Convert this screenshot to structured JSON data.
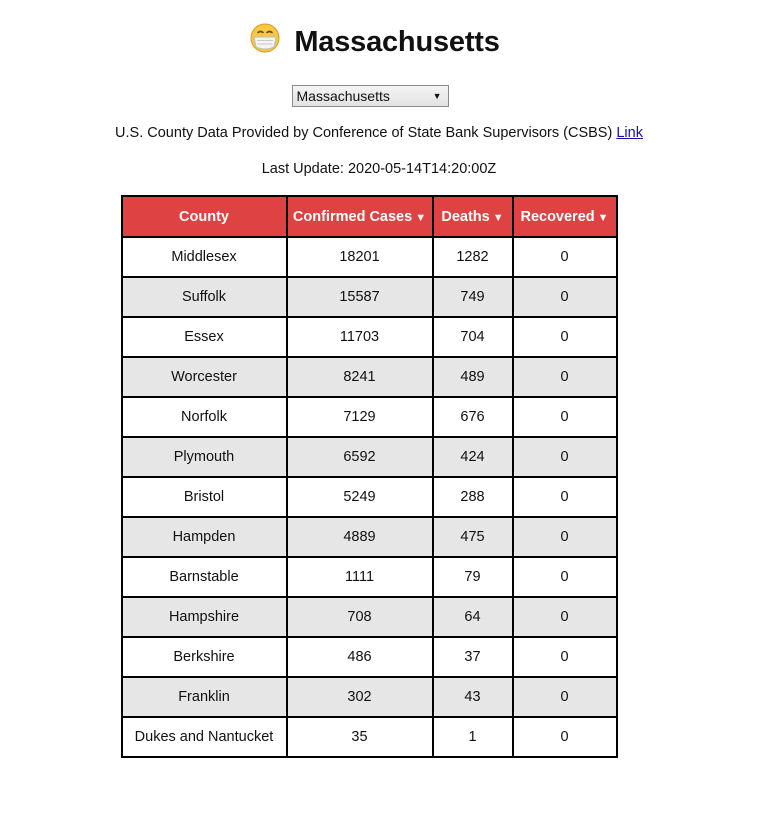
{
  "header": {
    "icon": "face-with-medical-mask-icon",
    "title": "Massachusetts"
  },
  "state_select": {
    "selected": "Massachusetts"
  },
  "source": {
    "text": "U.S. County Data Provided by Conference of State Bank Supervisors (CSBS)",
    "link_label": "Link"
  },
  "last_update": "Last Update: 2020-05-14T14:20:00Z",
  "table": {
    "header_color": "#df4242",
    "columns": [
      "County",
      "Confirmed Cases",
      "Deaths",
      "Recovered"
    ],
    "sort_arrow": "▼",
    "rows": [
      [
        "Middlesex",
        "18201",
        "1282",
        "0"
      ],
      [
        "Suffolk",
        "15587",
        "749",
        "0"
      ],
      [
        "Essex",
        "11703",
        "704",
        "0"
      ],
      [
        "Worcester",
        "8241",
        "489",
        "0"
      ],
      [
        "Norfolk",
        "7129",
        "676",
        "0"
      ],
      [
        "Plymouth",
        "6592",
        "424",
        "0"
      ],
      [
        "Bristol",
        "5249",
        "288",
        "0"
      ],
      [
        "Hampden",
        "4889",
        "475",
        "0"
      ],
      [
        "Barnstable",
        "1111",
        "79",
        "0"
      ],
      [
        "Hampshire",
        "708",
        "64",
        "0"
      ],
      [
        "Berkshire",
        "486",
        "37",
        "0"
      ],
      [
        "Franklin",
        "302",
        "43",
        "0"
      ],
      [
        "Dukes and Nantucket",
        "35",
        "1",
        "0"
      ]
    ]
  }
}
